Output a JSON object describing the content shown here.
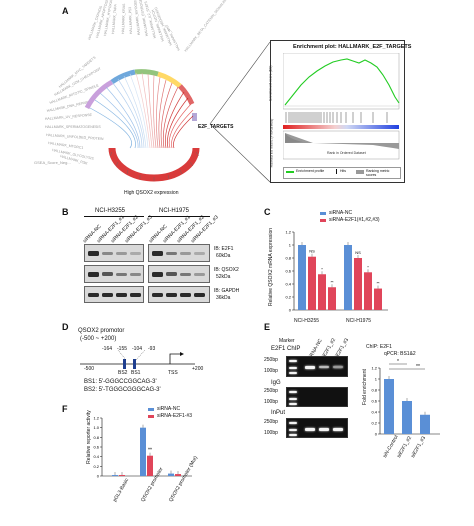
{
  "panels": {
    "a": "A",
    "b": "B",
    "c": "C",
    "d": "D",
    "e": "E",
    "f": "F"
  },
  "panel_a": {
    "gsea_title": "Enrichment plot: HALLMARK_E2F_TARGETS",
    "es_axis": "Enrichment score (ES)",
    "metric_axis": "Ranked list metric (PreRanked)",
    "rank_axis": "Rank in Ordered Dataset",
    "legend_es": "Enrichment profile",
    "legend_hits": "Hits",
    "legend_metric": "Ranking metric scores",
    "circos_label": "E2F_TARGETS",
    "bottom_label": "High QSOX2 expression",
    "top_label_visible": "HALLMARK_BETA_CATENIN_SIGNALING",
    "lower_annotation": "GSEA_Score_Neg..."
  },
  "panel_b": {
    "cell_lines": [
      "NCI-H3255",
      "NCI-H1975"
    ],
    "lanes": [
      "siRNA-NC",
      "siRNA-E2F1_#1",
      "siRNA-E2F1_#2",
      "siRNA-E2F1_#3"
    ],
    "blots": [
      {
        "label": "IB: E2F1",
        "size": "60kDa"
      },
      {
        "label": "IB: QSOX2",
        "size": "52kDa"
      },
      {
        "label": "IB: GAPDH",
        "size": "36kDa"
      }
    ]
  },
  "panel_c": {
    "legend": [
      "siRNA-NC",
      "siRNA-E2F1(#1,#2,#3)"
    ],
    "colors": {
      "nc": "#5a8fd6",
      "e2f1": "#e0455a"
    },
    "sig": [
      "NS",
      "*",
      "**"
    ]
  },
  "panel_d": {
    "title": "QSOX2 promotor",
    "range": "(-500 ~ +200)",
    "pos_left": "-500",
    "pos_right": "+200",
    "pos_a": "-164",
    "pos_b": "-155",
    "pos_c": "-104",
    "pos_d": "-93",
    "bs2": "BS2",
    "bs1": "BS1",
    "tss": "TSS",
    "bs1_seq": "BS1: 5'-GGGCCGGCAG-3'",
    "bs2_seq": "BS2: 5'-TGGGCGGGCAG-3'"
  },
  "panel_e": {
    "header": "E2F1 ChIP",
    "marker": "Marker",
    "lanes": [
      "siRNA-NC",
      "siE2F1_#2",
      "siE2F1_#3"
    ],
    "row_labels": [
      "IgG",
      "InPut"
    ],
    "sizes": [
      "250bp",
      "100bp",
      "250bp",
      "100bp",
      "250bp",
      "100bp"
    ],
    "bar_title": "ChIP: E2F1",
    "bar_sub": "qPCR: BS1&2",
    "bar_sig": [
      "*",
      "**"
    ]
  },
  "panel_f": {
    "legend": [
      "siRNA-NC",
      "siRNA-E2F1-#3"
    ],
    "ylabel": "Relative reporter activity",
    "sig": "**"
  },
  "chart_data": [
    {
      "type": "bar",
      "title": "",
      "xlabel": "",
      "ylabel": "Relative QSOX2 mRNA expression",
      "categories": [
        "NCI-H3255",
        "NCI-H1975"
      ],
      "series": [
        {
          "name": "siRNA-NC",
          "values": [
            1.0,
            1.0
          ]
        },
        {
          "name": "siRNA-E2F1(#1,#2,#3)",
          "values": [
            [
              0.82,
              0.55,
              0.35
            ],
            [
              0.8,
              0.58,
              0.33
            ]
          ]
        }
      ],
      "ylim": [
        0,
        1.2
      ],
      "yticks": [
        "0",
        "0.2",
        "0.4",
        "0.6",
        "0.8",
        "1",
        "1.2"
      ]
    },
    {
      "type": "bar",
      "title": "ChIP: E2F1",
      "xlabel": "",
      "ylabel": "Fold enrichment",
      "categories": [
        "siN-Control",
        "siE2F1_#2",
        "siE2F1_#3"
      ],
      "values": [
        1.0,
        0.6,
        0.35
      ],
      "ylim": [
        0,
        1.2
      ],
      "yticks": [
        "0",
        "0.2",
        "0.4",
        "0.6",
        "0.8",
        "1",
        "1.2"
      ]
    },
    {
      "type": "bar",
      "title": "",
      "xlabel": "",
      "ylabel": "Relative reporter activity",
      "categories": [
        "pGL3-Basic",
        "QSOX2 promoter",
        "QSOX2 promoter (Mut)"
      ],
      "series": [
        {
          "name": "siRNA-NC",
          "values": [
            0.02,
            1.0,
            0.05
          ]
        },
        {
          "name": "siRNA-E2F1-#3",
          "values": [
            0.02,
            0.42,
            0.04
          ]
        }
      ],
      "ylim": [
        0,
        1.2
      ],
      "yticks": [
        "0",
        "0.2",
        "0.4",
        "0.6",
        "0.8",
        "1.0",
        "1.2"
      ]
    }
  ]
}
